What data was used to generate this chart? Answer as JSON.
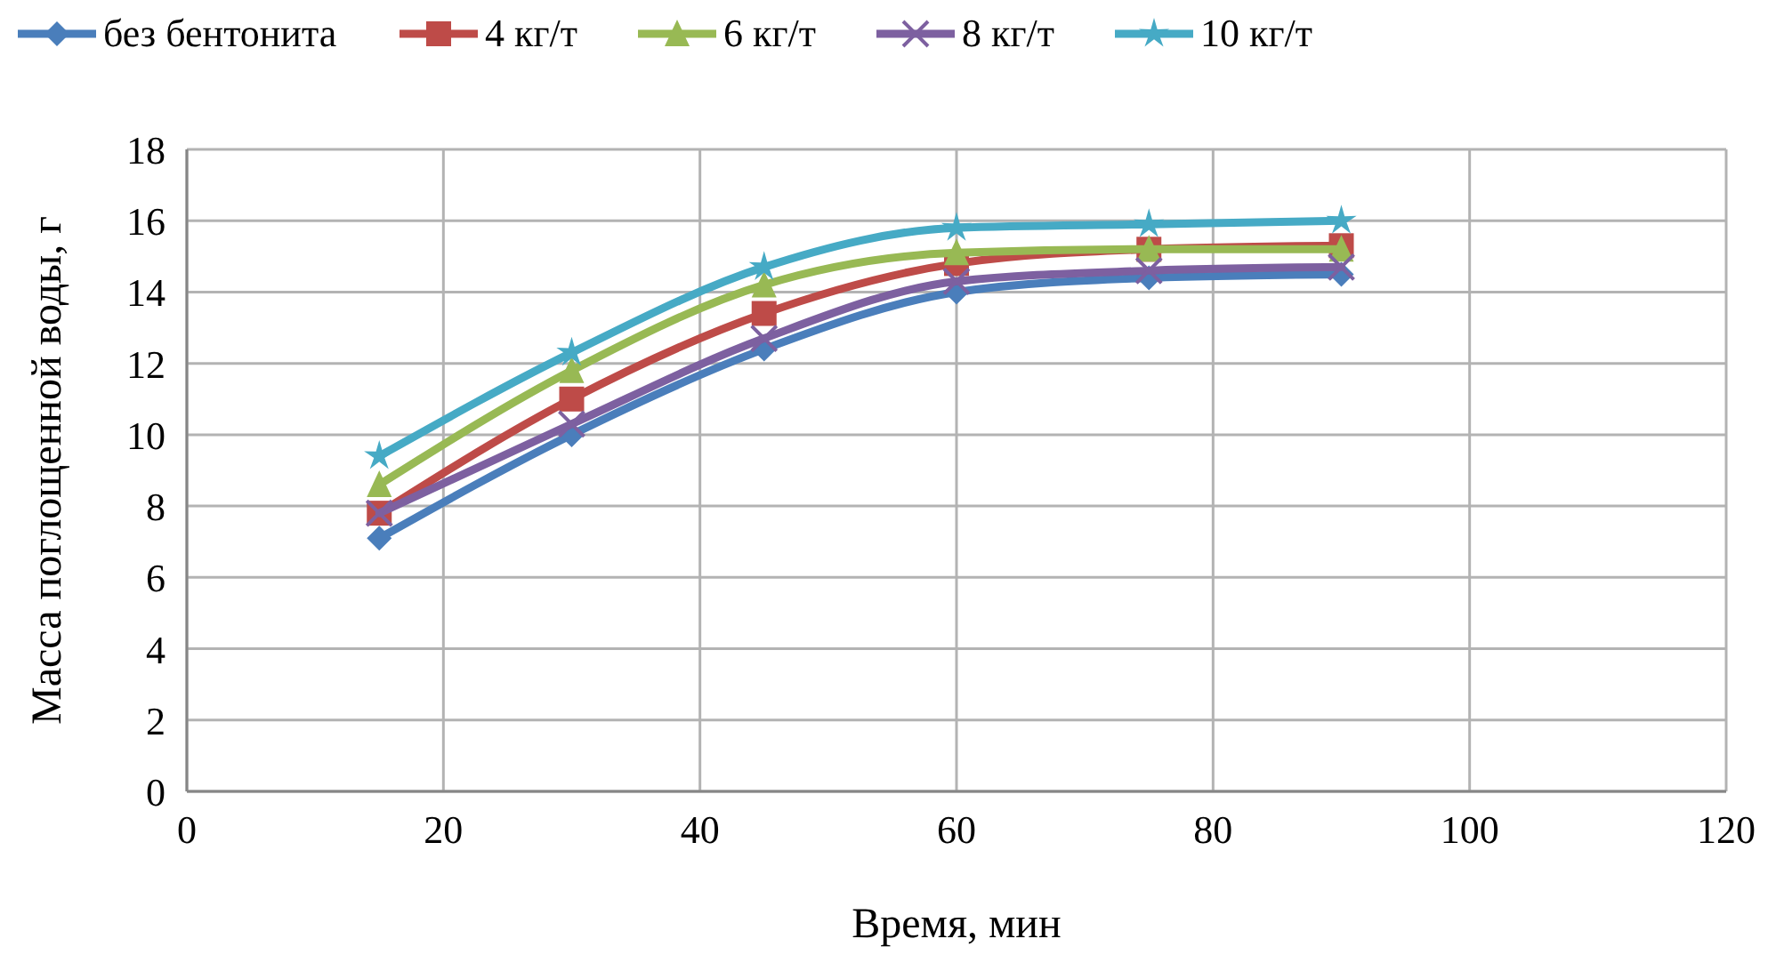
{
  "chart_data": {
    "type": "line",
    "xlabel": "Время, мин",
    "ylabel": "Масса поглощенной воды, г",
    "x": [
      15,
      30,
      45,
      60,
      75,
      90
    ],
    "xlim": [
      0,
      120
    ],
    "xticks": [
      0,
      20,
      40,
      60,
      80,
      100,
      120
    ],
    "ylim": [
      0,
      18
    ],
    "yticks": [
      0,
      2,
      4,
      6,
      8,
      10,
      12,
      14,
      16,
      18
    ],
    "grid": true,
    "legend": "top",
    "series": [
      {
        "name": "без бентонита",
        "color": "#4a7ebb",
        "marker": "diamond",
        "values": [
          7.1,
          10.0,
          12.4,
          14.0,
          14.4,
          14.5
        ]
      },
      {
        "name": "4 кг/т",
        "color": "#be4b48",
        "marker": "square",
        "values": [
          7.8,
          11.0,
          13.4,
          14.8,
          15.2,
          15.3
        ]
      },
      {
        "name": "6 кг/т",
        "color": "#98b954",
        "marker": "triangle",
        "values": [
          8.6,
          11.8,
          14.2,
          15.1,
          15.2,
          15.2
        ]
      },
      {
        "name": "8 кг/т",
        "color": "#7d60a0",
        "marker": "cross",
        "values": [
          7.8,
          10.3,
          12.7,
          14.3,
          14.6,
          14.7
        ]
      },
      {
        "name": "10 кг/т",
        "color": "#46aac5",
        "marker": "star",
        "values": [
          9.4,
          12.3,
          14.7,
          15.8,
          15.9,
          16.0
        ]
      }
    ]
  }
}
